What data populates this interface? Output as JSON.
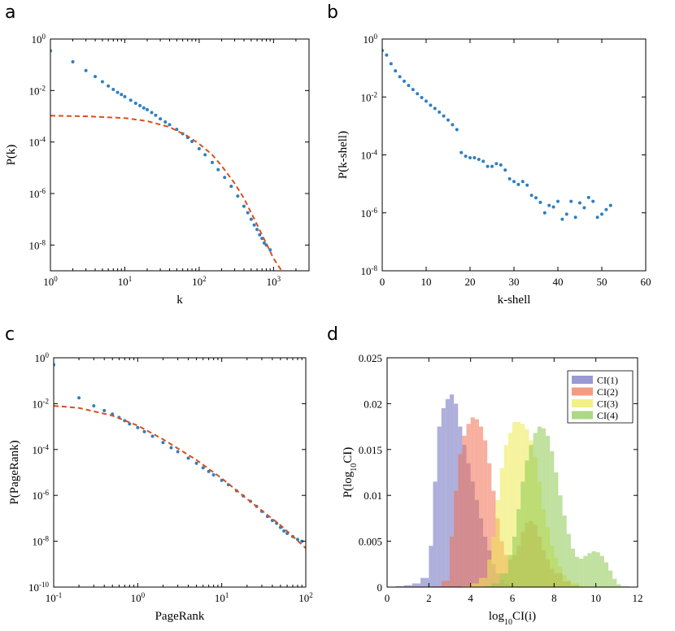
{
  "chart_data": [
    {
      "panel": "a",
      "type": "scatter",
      "xscale": "log",
      "yscale": "log",
      "xlabel": "k",
      "ylabel": "P(k)",
      "xlim": [
        1,
        3000
      ],
      "ylim": [
        1e-09,
        1
      ],
      "xticks": [
        {
          "base": "10",
          "exp": "0"
        },
        {
          "base": "10",
          "exp": "1"
        },
        {
          "base": "10",
          "exp": "2"
        },
        {
          "base": "10",
          "exp": "3"
        }
      ],
      "yticks": [
        {
          "base": "10",
          "exp": "0"
        },
        {
          "base": "10",
          "exp": "-2"
        },
        {
          "base": "10",
          "exp": "-4"
        },
        {
          "base": "10",
          "exp": "-6"
        },
        {
          "base": "10",
          "exp": "-8"
        }
      ],
      "series": [
        {
          "name": "data",
          "style": "markers",
          "color": "#2f7fbf",
          "points": [
            [
              1,
              0.35
            ],
            [
              2,
              0.13
            ],
            [
              3,
              0.06
            ],
            [
              4,
              0.035
            ],
            [
              5,
              0.022
            ],
            [
              6,
              0.015
            ],
            [
              7,
              0.011
            ],
            [
              8,
              0.0085
            ],
            [
              9,
              0.007
            ],
            [
              10,
              0.0058
            ],
            [
              12,
              0.0042
            ],
            [
              14,
              0.0032
            ],
            [
              16,
              0.0026
            ],
            [
              18,
              0.0021
            ],
            [
              20,
              0.0018
            ],
            [
              23,
              0.0014
            ],
            [
              26,
              0.0011
            ],
            [
              30,
              0.0008
            ],
            [
              35,
              0.0006
            ],
            [
              40,
              0.00047
            ],
            [
              50,
              0.00031
            ],
            [
              60,
              0.00021
            ],
            [
              70,
              0.00015
            ],
            [
              80,
              0.000105
            ],
            [
              100,
              5.5e-05
            ],
            [
              120,
              3.2e-05
            ],
            [
              150,
              1.6e-05
            ],
            [
              180,
              8.5e-06
            ],
            [
              220,
              4.2e-06
            ],
            [
              270,
              1.9e-06
            ],
            [
              330,
              8e-07
            ],
            [
              400,
              3.2e-07
            ],
            [
              450,
              1.8e-07
            ],
            [
              500,
              1e-07
            ],
            [
              550,
              6e-08
            ],
            [
              600,
              4e-08
            ],
            [
              650,
              2.5e-08
            ],
            [
              700,
              1.8e-08
            ],
            [
              750,
              1.2e-08
            ],
            [
              800,
              1e-08
            ],
            [
              900,
              6.5e-09
            ]
          ]
        },
        {
          "name": "fit",
          "style": "dashed-line",
          "color": "#d9501c",
          "points": [
            [
              1,
              0.00105
            ],
            [
              3,
              0.001
            ],
            [
              10,
              0.00085
            ],
            [
              20,
              0.00065
            ],
            [
              40,
              0.00038
            ],
            [
              70,
              0.00017
            ],
            [
              100,
              8.5e-05
            ],
            [
              150,
              3.2e-05
            ],
            [
              200,
              1.2e-05
            ],
            [
              300,
              2.5e-06
            ],
            [
              400,
              6.5e-07
            ],
            [
              500,
              1.8e-07
            ],
            [
              700,
              2.5e-08
            ],
            [
              1000,
              3e-09
            ],
            [
              1500,
              5e-10
            ]
          ]
        }
      ]
    },
    {
      "panel": "b",
      "type": "scatter",
      "xscale": "linear",
      "yscale": "log",
      "xlabel": "k-shell",
      "ylabel": "P(k-shell)",
      "xlim": [
        0,
        60
      ],
      "ylim": [
        1e-08,
        1
      ],
      "xticks": [
        "0",
        "10",
        "20",
        "30",
        "40",
        "50",
        "60"
      ],
      "yticks": [
        {
          "base": "10",
          "exp": "0"
        },
        {
          "base": "10",
          "exp": "-2"
        },
        {
          "base": "10",
          "exp": "-4"
        },
        {
          "base": "10",
          "exp": "-6"
        },
        {
          "base": "10",
          "exp": "-8"
        }
      ],
      "series": [
        {
          "name": "data",
          "style": "markers",
          "color": "#2f7fbf",
          "points": [
            [
              0,
              0.4
            ],
            [
              1,
              0.28
            ],
            [
              2,
              0.14
            ],
            [
              3,
              0.08
            ],
            [
              4,
              0.05
            ],
            [
              5,
              0.035
            ],
            [
              6,
              0.025
            ],
            [
              7,
              0.018
            ],
            [
              8,
              0.013
            ],
            [
              9,
              0.0095
            ],
            [
              10,
              0.0072
            ],
            [
              11,
              0.0052
            ],
            [
              12,
              0.004
            ],
            [
              13,
              0.003
            ],
            [
              14,
              0.0022
            ],
            [
              15,
              0.0016
            ],
            [
              16,
              0.0011
            ],
            [
              17,
              0.00075
            ],
            [
              18,
              0.00012
            ],
            [
              19,
              9e-05
            ],
            [
              20,
              8e-05
            ],
            [
              21,
              8e-05
            ],
            [
              22,
              7e-05
            ],
            [
              23,
              6e-05
            ],
            [
              24,
              4e-05
            ],
            [
              25,
              4e-05
            ],
            [
              26,
              5e-05
            ],
            [
              27,
              4.5e-05
            ],
            [
              28,
              3e-05
            ],
            [
              29,
              1.5e-05
            ],
            [
              30,
              1.2e-05
            ],
            [
              31,
              9.5e-06
            ],
            [
              32,
              1.2e-05
            ],
            [
              33,
              9e-06
            ],
            [
              34,
              4e-06
            ],
            [
              35,
              3.3e-06
            ],
            [
              36,
              2.3e-06
            ],
            [
              37,
              1e-06
            ],
            [
              38,
              1.8e-06
            ],
            [
              39,
              1.6e-06
            ],
            [
              40,
              2.5e-06
            ],
            [
              41,
              6e-07
            ],
            [
              42,
              9e-07
            ],
            [
              43,
              2.5e-06
            ],
            [
              44,
              7e-07
            ],
            [
              45,
              2.2e-06
            ],
            [
              46,
              1.5e-06
            ],
            [
              47,
              3.4e-06
            ],
            [
              48,
              2.5e-06
            ],
            [
              49,
              7e-07
            ],
            [
              50,
              9e-07
            ],
            [
              51,
              1.3e-06
            ],
            [
              52,
              1.8e-06
            ]
          ]
        }
      ]
    },
    {
      "panel": "c",
      "type": "scatter",
      "xscale": "log",
      "yscale": "log",
      "xlabel": "PageRank",
      "ylabel": "P(PageRank)",
      "xlim": [
        0.1,
        100
      ],
      "ylim": [
        1e-10,
        1
      ],
      "xticks": [
        {
          "base": "10",
          "exp": "-1"
        },
        {
          "base": "10",
          "exp": "0"
        },
        {
          "base": "10",
          "exp": "1"
        },
        {
          "base": "10",
          "exp": "2"
        }
      ],
      "yticks": [
        {
          "base": "10",
          "exp": "0"
        },
        {
          "base": "10",
          "exp": "-2"
        },
        {
          "base": "10",
          "exp": "-4"
        },
        {
          "base": "10",
          "exp": "-6"
        },
        {
          "base": "10",
          "exp": "-8"
        },
        {
          "base": "10",
          "exp": "-10"
        }
      ],
      "series": [
        {
          "name": "data",
          "style": "markers",
          "color": "#2f7fbf",
          "points": [
            [
              0.1,
              0.5
            ],
            [
              0.2,
              0.018
            ],
            [
              0.3,
              0.008
            ],
            [
              0.4,
              0.005
            ],
            [
              0.5,
              0.0035
            ],
            [
              0.6,
              0.0025
            ],
            [
              0.7,
              0.0018
            ],
            [
              0.8,
              0.0013
            ],
            [
              1,
              0.0009
            ],
            [
              1.2,
              0.0006
            ],
            [
              1.5,
              0.00038
            ],
            [
              2,
              0.0002
            ],
            [
              2.5,
              0.00012
            ],
            [
              3,
              8e-05
            ],
            [
              4,
              4.2e-05
            ],
            [
              5,
              2.5e-05
            ],
            [
              6,
              1.6e-05
            ],
            [
              7,
              1.1e-05
            ],
            [
              8,
              7.8e-06
            ],
            [
              10,
              4.5e-06
            ],
            [
              12,
              2.9e-06
            ],
            [
              15,
              1.6e-06
            ],
            [
              18,
              9.5e-07
            ],
            [
              22,
              5.5e-07
            ],
            [
              26,
              3.3e-07
            ],
            [
              30,
              2e-07
            ],
            [
              35,
              1.2e-07
            ],
            [
              40,
              8e-08
            ],
            [
              45,
              6e-08
            ],
            [
              50,
              4e-08
            ],
            [
              55,
              2.8e-08
            ],
            [
              60,
              2.2e-08
            ],
            [
              70,
              1.6e-08
            ],
            [
              80,
              1.2e-08
            ],
            [
              90,
              1e-08
            ]
          ]
        },
        {
          "name": "fit",
          "style": "dashed-line",
          "color": "#d9501c",
          "points": [
            [
              0.1,
              0.008
            ],
            [
              0.2,
              0.0065
            ],
            [
              0.5,
              0.003
            ],
            [
              1,
              0.0011
            ],
            [
              2,
              0.00028
            ],
            [
              5,
              3.5e-05
            ],
            [
              10,
              5.5e-06
            ],
            [
              20,
              7e-07
            ],
            [
              50,
              5e-08
            ],
            [
              100,
              5e-09
            ]
          ]
        }
      ]
    },
    {
      "panel": "d",
      "type": "bar",
      "subtype": "overlapping-histogram",
      "xlabel": {
        "pre": "log",
        "sub": "10",
        "post": "CI(i)"
      },
      "ylabel": {
        "pre": "P(log",
        "sub": "10",
        "post": "CI)"
      },
      "xlim": [
        0,
        12
      ],
      "ylim": [
        0,
        0.025
      ],
      "xticks": [
        "0",
        "2",
        "4",
        "6",
        "8",
        "10",
        "12"
      ],
      "yticks": [
        "0",
        "0.005",
        "0.01",
        "0.015",
        "0.02",
        "0.025"
      ],
      "legend_position": "top-right",
      "series": [
        {
          "name": "CI(1)",
          "color": "#6e6ec0",
          "x": [
            0.4,
            0.8,
            1.2,
            1.6,
            2.0,
            2.2,
            2.4,
            2.6,
            2.8,
            3.0,
            3.2,
            3.4,
            3.6,
            3.8,
            4.0,
            4.2,
            4.4,
            4.6,
            4.8,
            5.0,
            5.2,
            5.4,
            5.6,
            5.8,
            6.0,
            6.4,
            6.8,
            7.2
          ],
          "values": [
            0.0001,
            0.0002,
            0.0004,
            0.001,
            0.0045,
            0.0115,
            0.0175,
            0.0195,
            0.0205,
            0.021,
            0.02,
            0.0175,
            0.0155,
            0.0135,
            0.0115,
            0.0095,
            0.0075,
            0.0055,
            0.004,
            0.0025,
            0.0015,
            0.0008,
            0.0004,
            0.0002,
            0.0001,
            5e-05,
            2e-05,
            0
          ]
        },
        {
          "name": "CI(2)",
          "color": "#f07050",
          "x": [
            2.2,
            2.6,
            3.0,
            3.2,
            3.4,
            3.6,
            3.8,
            4.0,
            4.2,
            4.4,
            4.6,
            4.8,
            5.0,
            5.2,
            5.4,
            5.6,
            5.8,
            6.0,
            6.2,
            6.4,
            6.6,
            6.8,
            7.0,
            7.2,
            7.4,
            7.6,
            7.8,
            8.0,
            8.4,
            8.8,
            9.2
          ],
          "values": [
            0.0001,
            0.0007,
            0.0055,
            0.0105,
            0.0145,
            0.0165,
            0.0178,
            0.0185,
            0.0183,
            0.0175,
            0.016,
            0.0135,
            0.0105,
            0.0075,
            0.005,
            0.0035,
            0.003,
            0.0035,
            0.0045,
            0.006,
            0.007,
            0.0072,
            0.0068,
            0.0055,
            0.004,
            0.003,
            0.002,
            0.0015,
            0.0006,
            0.0002,
            0
          ]
        },
        {
          "name": "CI(3)",
          "color": "#eeea50",
          "x": [
            3.6,
            4.0,
            4.4,
            4.8,
            5.0,
            5.2,
            5.4,
            5.6,
            5.8,
            6.0,
            6.2,
            6.4,
            6.6,
            6.8,
            7.0,
            7.2,
            7.4,
            7.6,
            7.8,
            8.0,
            8.2,
            8.4,
            8.6,
            8.8,
            9.2,
            9.6
          ],
          "values": [
            0.0001,
            0.0004,
            0.001,
            0.003,
            0.0055,
            0.0095,
            0.013,
            0.0155,
            0.0168,
            0.018,
            0.018,
            0.0178,
            0.0172,
            0.016,
            0.0142,
            0.0115,
            0.0085,
            0.0065,
            0.0045,
            0.0032,
            0.0022,
            0.0013,
            0.0008,
            0.0004,
            0.0001,
            0
          ]
        },
        {
          "name": "CI(4)",
          "color": "#8cc850",
          "x": [
            4.6,
            5.0,
            5.4,
            5.8,
            6.0,
            6.2,
            6.4,
            6.6,
            6.8,
            7.0,
            7.2,
            7.4,
            7.6,
            7.8,
            8.0,
            8.2,
            8.4,
            8.6,
            8.8,
            9.0,
            9.2,
            9.4,
            9.6,
            9.8,
            10.0,
            10.2,
            10.4,
            10.6,
            10.8,
            11.0,
            11.2,
            11.6
          ],
          "values": [
            0.0001,
            0.0004,
            0.0015,
            0.0035,
            0.0055,
            0.0085,
            0.0115,
            0.0138,
            0.0155,
            0.0168,
            0.0175,
            0.0173,
            0.0165,
            0.0148,
            0.0125,
            0.01,
            0.0078,
            0.0058,
            0.0042,
            0.0033,
            0.0031,
            0.0034,
            0.0037,
            0.0039,
            0.0038,
            0.0034,
            0.0027,
            0.0018,
            0.0009,
            0.0003,
            0.0001,
            0
          ]
        }
      ]
    }
  ]
}
